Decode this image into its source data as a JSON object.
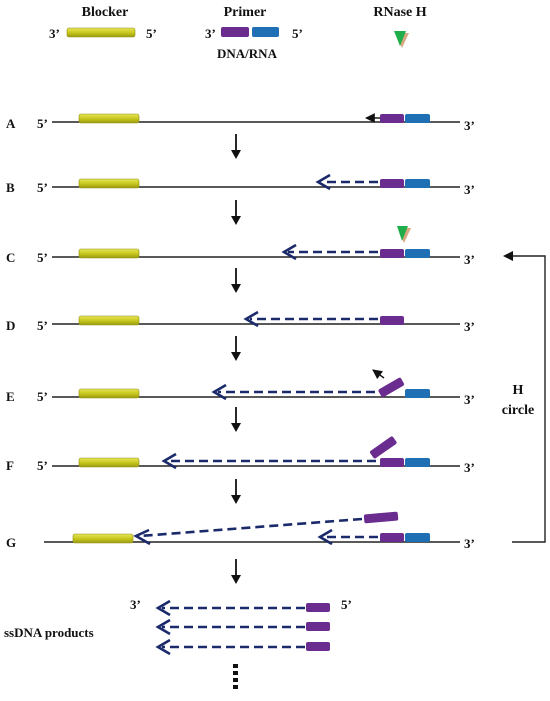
{
  "legend": {
    "blocker_title": "Blocker",
    "blocker_3": "3’",
    "blocker_5": "5’",
    "primer_title": "Primer",
    "primer_3": "3’",
    "primer_5": "5’",
    "primer_sub": "DNA/RNA",
    "rnase_title": "RNase H"
  },
  "rows": [
    {
      "letter": "A",
      "end5": "5’",
      "end3": "3’"
    },
    {
      "letter": "B",
      "end5": "5’",
      "end3": "3’"
    },
    {
      "letter": "C",
      "end5": "5’",
      "end3": "3’"
    },
    {
      "letter": "D",
      "end5": "5’",
      "end3": "3’"
    },
    {
      "letter": "E",
      "end5": "5’",
      "end3": "3’"
    },
    {
      "letter": "F",
      "end5": "5’",
      "end3": "3’"
    },
    {
      "letter": "G",
      "end5": "",
      "end3": "3’"
    }
  ],
  "cycle_label_line1": "H",
  "cycle_label_line2": "circle",
  "products": {
    "label": "ssDNA products",
    "end3": "3’",
    "end5": "5’",
    "ellipsis": "⋮"
  },
  "colors": {
    "blocker": "#c8c81e",
    "blocker_edge": "#8f8f10",
    "dna_part": "#6a2c8e",
    "rna_part": "#1f6fb5",
    "extension": "#1b2a6b",
    "rnase_green": "#1fae4a",
    "rnase_tan": "#d8a880",
    "template": "#222222"
  }
}
